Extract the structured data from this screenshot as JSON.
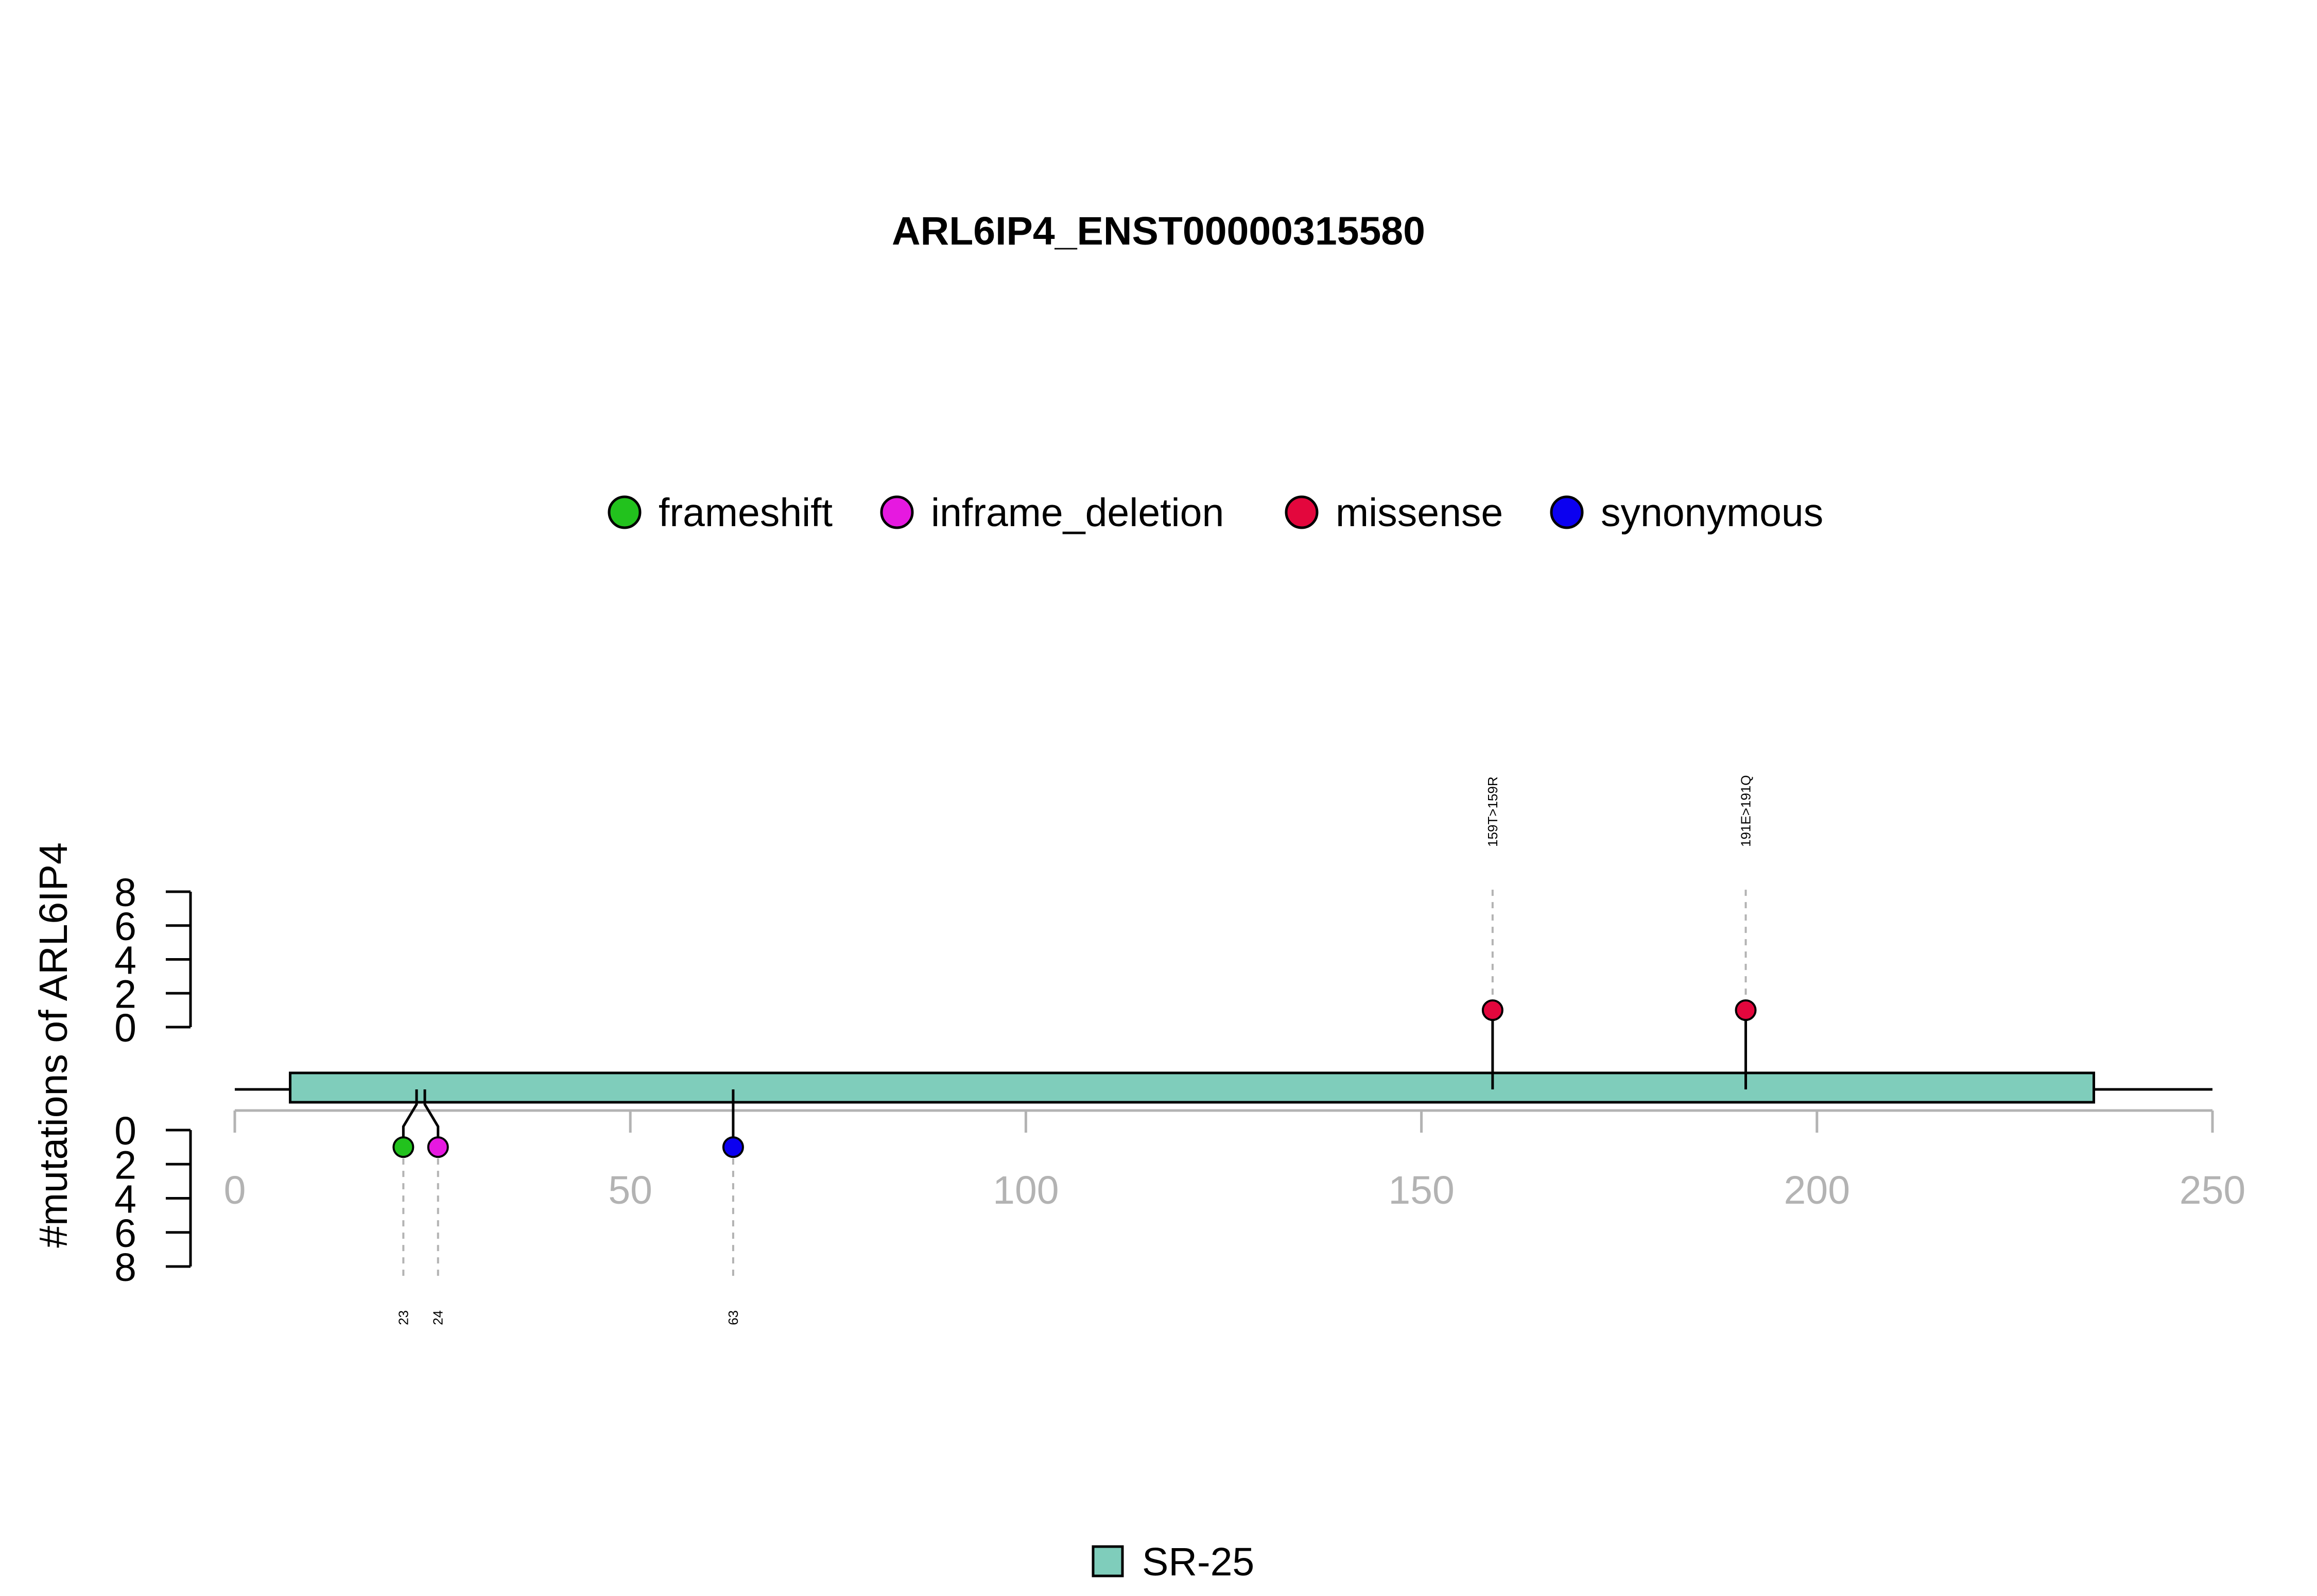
{
  "chart_data": {
    "type": "lollipop",
    "title": "ARL6IP4_ENST00000315580",
    "ylabel": "#mutations of ARL6IP4",
    "xlim": [
      0,
      250
    ],
    "x_ticks": [
      0,
      50,
      100,
      150,
      200,
      250
    ],
    "x_tick_labels": [
      "0",
      "50",
      "100",
      "150",
      "200",
      "250"
    ],
    "y_ticks": [
      0,
      2,
      4,
      6,
      8
    ],
    "y_tick_labels": [
      "0",
      "2",
      "4",
      "6",
      "8"
    ],
    "ylim": [
      0,
      8
    ],
    "protein_length": 250,
    "domains": [
      {
        "name": "SR-25",
        "start": 7,
        "end": 235,
        "color": "#7fcdbb"
      }
    ],
    "legend": [
      {
        "label": "frameshift",
        "color": "#22c21d"
      },
      {
        "label": "inframe_deletion",
        "color": "#e619e0"
      },
      {
        "label": "missense",
        "color": "#e3073d"
      },
      {
        "label": "synonymous",
        "color": "#0b00f0"
      }
    ],
    "domain_legend": [
      {
        "label": "SR-25",
        "color": "#7fcdbb"
      }
    ],
    "top_mutations": [
      {
        "position": 159,
        "count": 1,
        "type": "missense",
        "label": "159T>159R"
      },
      {
        "position": 191,
        "count": 1,
        "type": "missense",
        "label": "191E>191Q"
      }
    ],
    "bottom_mutations": [
      {
        "position": 23,
        "count": 1,
        "type": "frameshift",
        "label": "23"
      },
      {
        "position": 24,
        "count": 1,
        "type": "inframe_deletion",
        "label": "24"
      },
      {
        "position": 63,
        "count": 1,
        "type": "synonymous",
        "label": "63"
      }
    ]
  }
}
